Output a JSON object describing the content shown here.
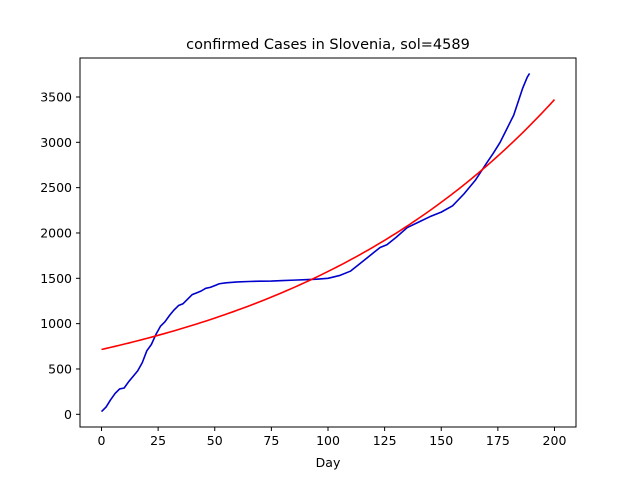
{
  "chart_data": {
    "type": "line",
    "title": "confirmed Cases in Slovenia, sol=4589",
    "xlabel": "Day",
    "ylabel": "",
    "xlim": [
      -9.5,
      209.5
    ],
    "ylim": [
      -140,
      3930
    ],
    "xticks": [
      0,
      25,
      50,
      75,
      100,
      125,
      150,
      175,
      200
    ],
    "yticks": [
      0,
      500,
      1000,
      1500,
      2000,
      2500,
      3000,
      3500
    ],
    "grid": false,
    "legend": false,
    "series": [
      {
        "color": "#0000cd",
        "x": [
          0,
          2,
          4,
          6,
          8,
          10,
          12,
          14,
          16,
          18,
          20,
          22,
          24,
          26,
          28,
          30,
          32,
          34,
          36,
          38,
          40,
          42,
          44,
          46,
          48,
          50,
          52,
          55,
          60,
          65,
          70,
          75,
          80,
          85,
          90,
          95,
          100,
          105,
          110,
          115,
          120,
          123,
          126,
          130,
          135,
          140,
          145,
          150,
          155,
          160,
          165,
          170,
          173,
          176,
          178,
          180,
          182,
          184,
          186,
          188,
          189
        ],
        "values": [
          30,
          80,
          160,
          230,
          280,
          290,
          360,
          420,
          480,
          570,
          700,
          770,
          880,
          970,
          1020,
          1090,
          1150,
          1200,
          1220,
          1270,
          1320,
          1340,
          1360,
          1390,
          1400,
          1420,
          1440,
          1450,
          1460,
          1465,
          1468,
          1470,
          1475,
          1480,
          1485,
          1490,
          1500,
          1530,
          1580,
          1680,
          1780,
          1840,
          1870,
          1950,
          2060,
          2120,
          2180,
          2230,
          2300,
          2430,
          2580,
          2770,
          2880,
          3000,
          3100,
          3200,
          3300,
          3450,
          3600,
          3720,
          3760
        ]
      },
      {
        "color": "#ff0000",
        "fit": {
          "a": 715,
          "b": 0.0079,
          "x_start": 0,
          "x_end": 200
        }
      }
    ]
  }
}
